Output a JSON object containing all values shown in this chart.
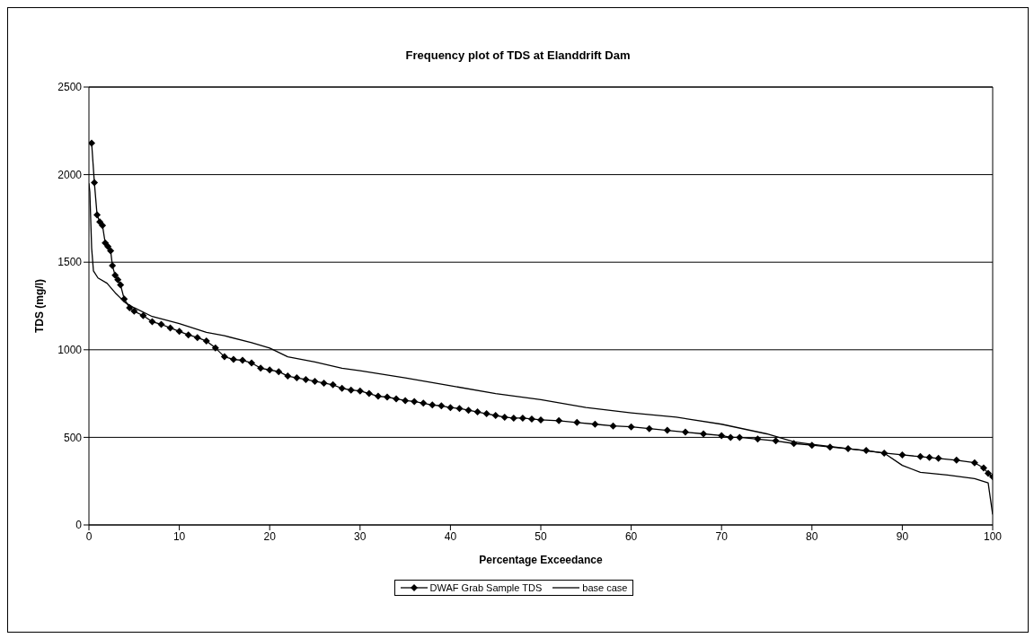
{
  "chart_data": {
    "type": "line",
    "title": "Frequency plot of TDS at Elanddrift Dam",
    "xlabel": "Percentage Exceedance",
    "ylabel": "TDS (mg/l)",
    "xlim": [
      0,
      100
    ],
    "xticks": [
      0,
      10,
      20,
      30,
      40,
      50,
      60,
      70,
      80,
      90,
      100
    ],
    "ylim": [
      0,
      2500
    ],
    "yticks": [
      0,
      500,
      1000,
      1500,
      2000,
      2500
    ],
    "grid": "y",
    "legend": "bottom",
    "series": [
      {
        "name": "DWAF Grab Sample TDS",
        "color": "#000000",
        "marker": "diamond",
        "x": [
          0.3,
          0.6,
          0.9,
          1.2,
          1.5,
          1.8,
          2.1,
          2.4,
          2.6,
          2.9,
          3.2,
          3.5,
          3.9,
          4.5,
          5,
          6,
          7,
          8,
          9,
          10,
          11,
          12,
          13,
          14,
          15,
          16,
          17,
          18,
          19,
          20,
          21,
          22,
          23,
          24,
          25,
          26,
          27,
          28,
          29,
          30,
          31,
          32,
          33,
          34,
          35,
          36,
          37,
          38,
          39,
          40,
          41,
          42,
          43,
          44,
          45,
          46,
          47,
          48,
          49,
          50,
          52,
          54,
          56,
          58,
          60,
          62,
          64,
          66,
          68,
          70,
          71,
          72,
          74,
          76,
          78,
          80,
          82,
          84,
          86,
          88,
          90,
          92,
          93,
          94,
          96,
          98,
          99,
          99.5,
          100
        ],
        "values": [
          2180,
          1955,
          1770,
          1730,
          1710,
          1610,
          1590,
          1565,
          1480,
          1425,
          1400,
          1370,
          1290,
          1240,
          1220,
          1195,
          1160,
          1145,
          1125,
          1105,
          1085,
          1070,
          1050,
          1010,
          960,
          945,
          940,
          925,
          895,
          885,
          875,
          850,
          840,
          830,
          820,
          810,
          800,
          780,
          770,
          765,
          750,
          735,
          730,
          720,
          710,
          705,
          695,
          685,
          680,
          670,
          665,
          655,
          645,
          635,
          625,
          615,
          610,
          610,
          605,
          600,
          595,
          585,
          575,
          565,
          560,
          550,
          540,
          530,
          520,
          510,
          500,
          500,
          490,
          480,
          465,
          455,
          445,
          435,
          425,
          410,
          400,
          390,
          385,
          380,
          370,
          355,
          325,
          295,
          275
        ]
      },
      {
        "name": "base case",
        "color": "#000000",
        "marker": "none",
        "x": [
          0,
          0.1,
          0.3,
          0.5,
          1,
          2,
          3,
          4,
          5,
          7,
          10,
          13,
          15,
          18,
          20,
          22,
          25,
          28,
          30,
          35,
          40,
          45,
          50,
          55,
          60,
          65,
          70,
          75,
          78,
          80,
          85,
          88,
          90,
          92,
          95,
          98,
          99.5,
          100
        ],
        "values": [
          1950,
          1900,
          1580,
          1450,
          1410,
          1380,
          1320,
          1270,
          1240,
          1190,
          1150,
          1100,
          1080,
          1040,
          1010,
          960,
          930,
          895,
          880,
          840,
          795,
          750,
          715,
          670,
          640,
          615,
          575,
          520,
          475,
          460,
          430,
          410,
          340,
          300,
          285,
          265,
          240,
          60
        ]
      }
    ]
  }
}
